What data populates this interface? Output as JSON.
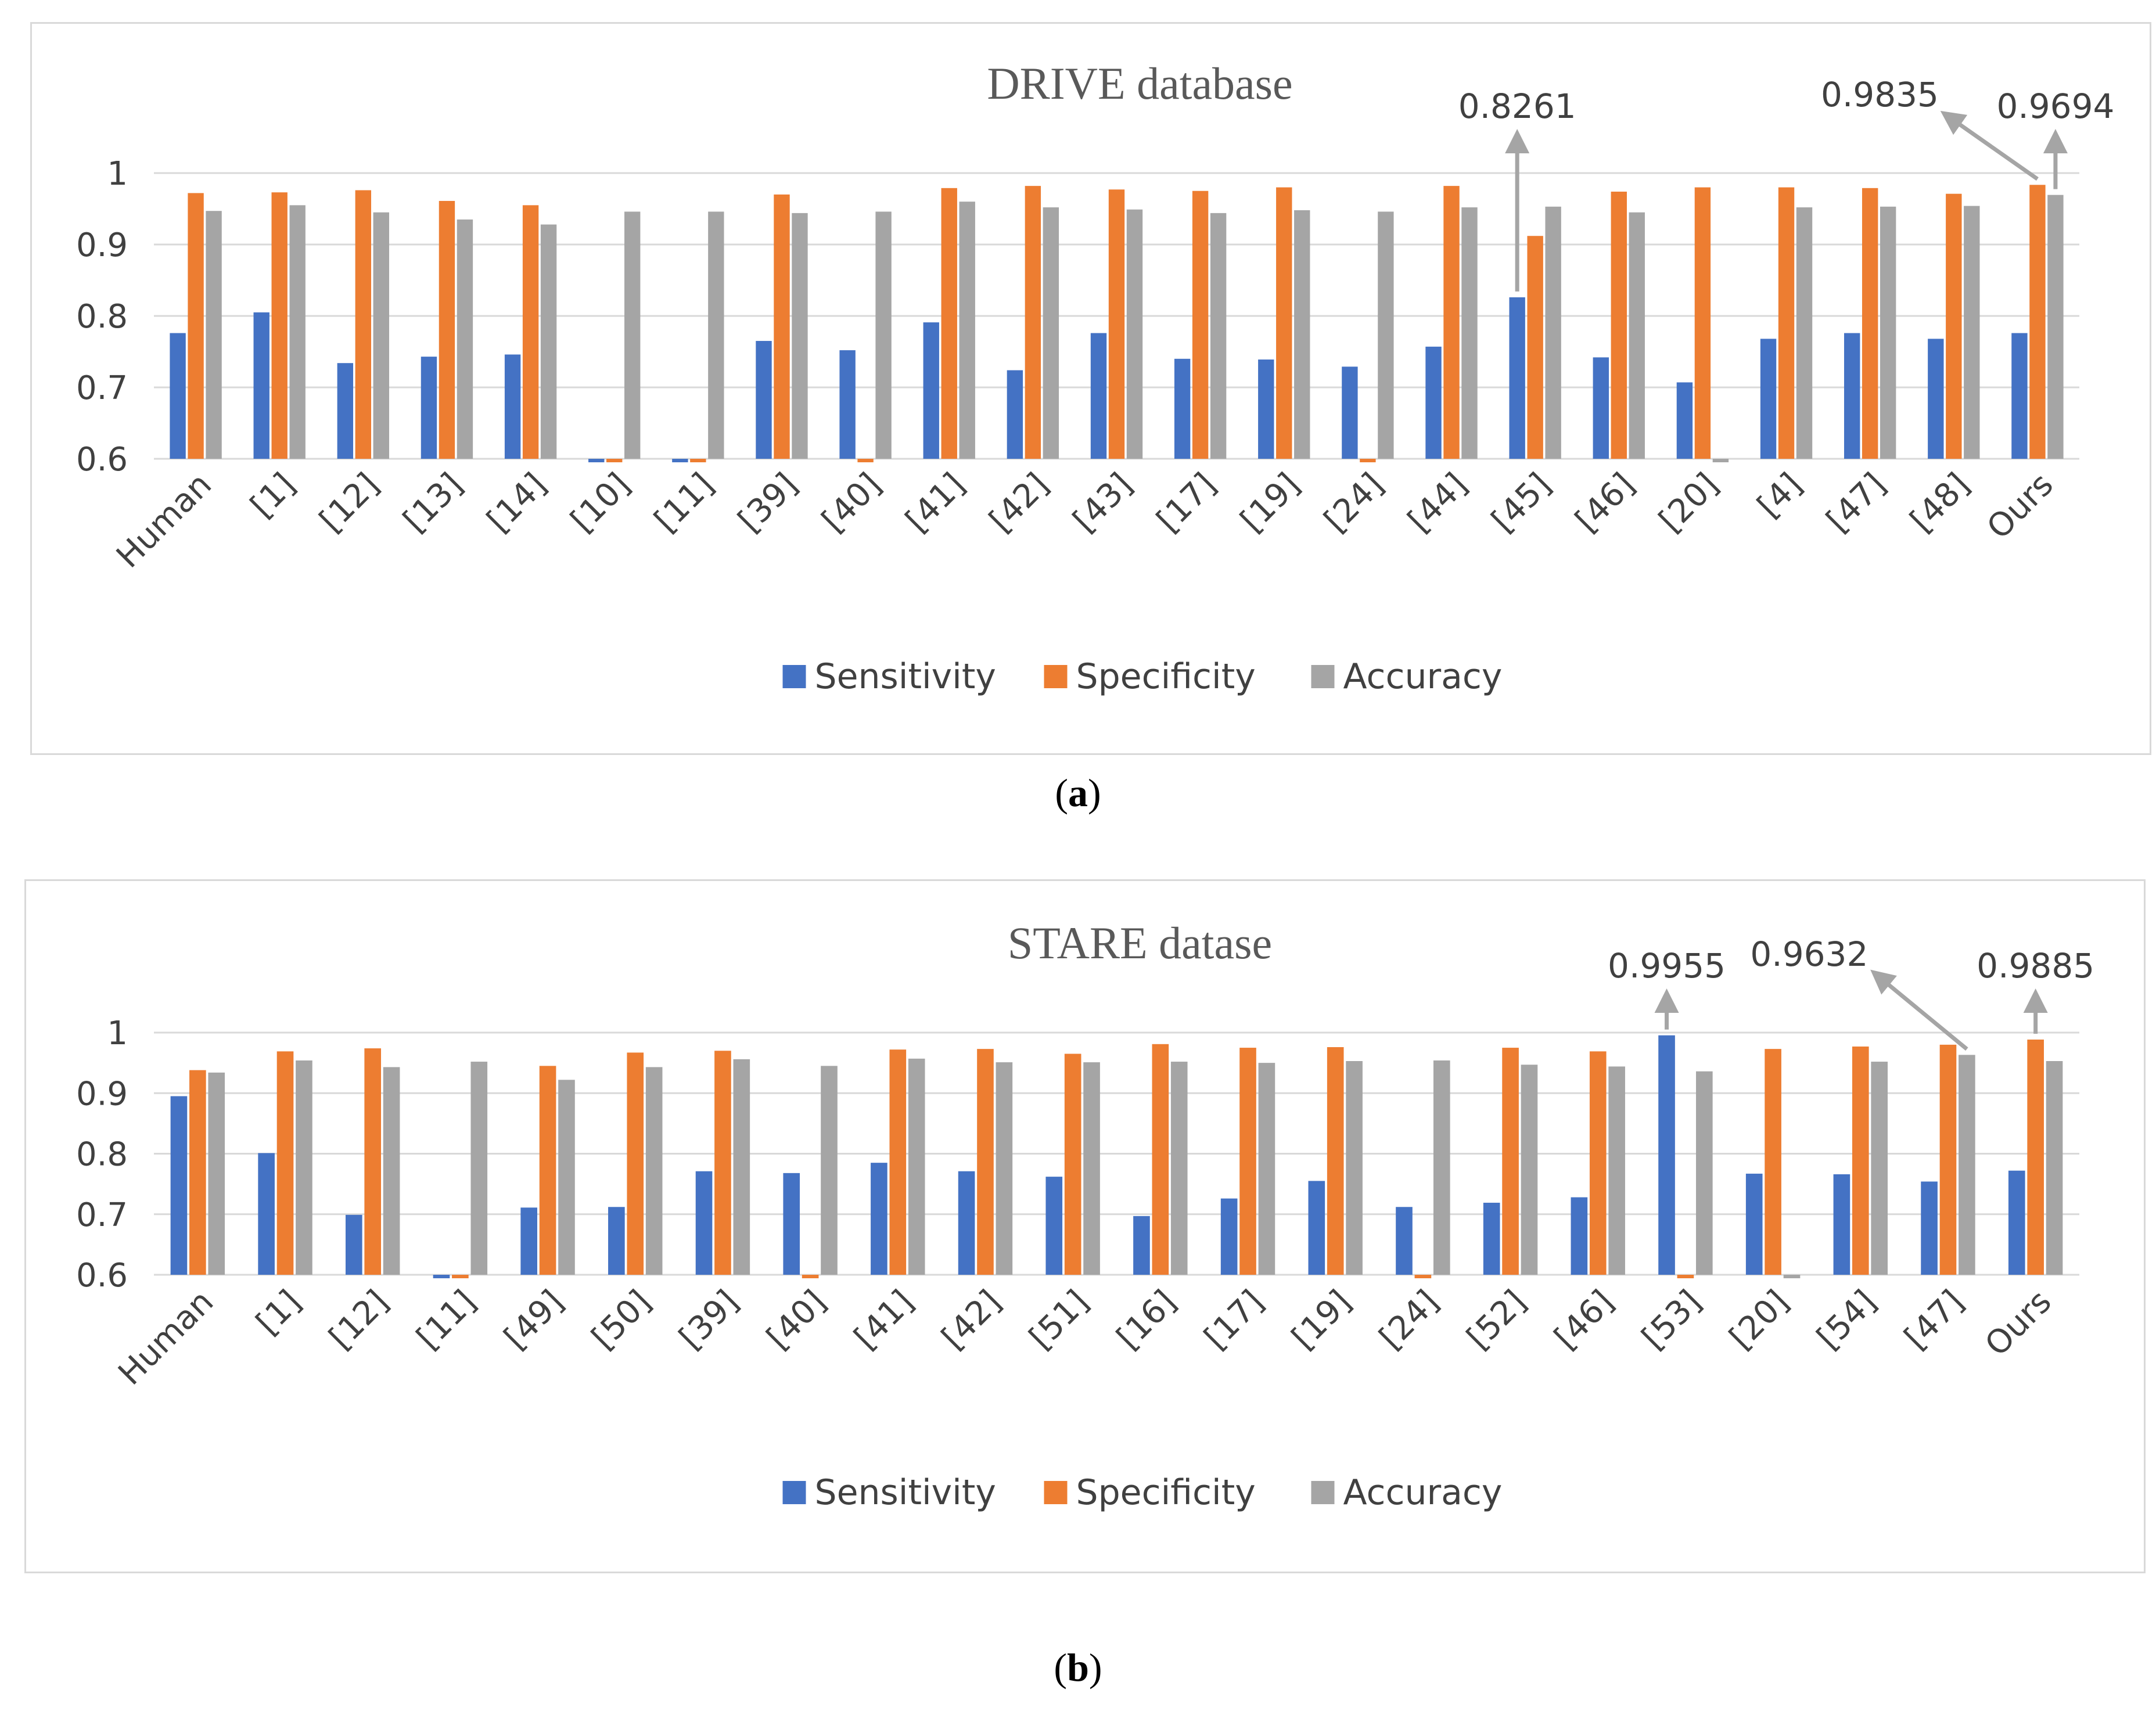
{
  "colors": {
    "sensitivity": "#4472C4",
    "specificity": "#ED7D31",
    "accuracy": "#A5A5A5",
    "grid": "#D9D9D9",
    "arrow": "#A5A5A5"
  },
  "captions": {
    "a": "a",
    "b": "b"
  },
  "chart_data": [
    {
      "type": "bar",
      "title": "DRIVE database",
      "ylim": [
        0.6,
        1.0
      ],
      "yticks": [
        "0.6",
        "0.7",
        "0.8",
        "0.9",
        "1"
      ],
      "categories": [
        "Human",
        "[1]",
        "[12]",
        "[13]",
        "[14]",
        "[10]",
        "[11]",
        "[39]",
        "[40]",
        "[41]",
        "[42]",
        "[43]",
        "[17]",
        "[19]",
        "[24]",
        "[44]",
        "[45]",
        "[46]",
        "[20]",
        "[4]",
        "[47]",
        "[48]",
        "Ours"
      ],
      "series": [
        {
          "name": "Sensitivity",
          "values": [
            0.776,
            0.805,
            0.734,
            0.743,
            0.746,
            0.595,
            0.595,
            0.765,
            0.752,
            0.791,
            0.724,
            0.776,
            0.74,
            0.739,
            0.729,
            0.757,
            0.8261,
            0.742,
            0.707,
            0.768,
            0.776,
            0.768,
            0.776
          ]
        },
        {
          "name": "Specificity",
          "values": [
            0.972,
            0.973,
            0.976,
            0.961,
            0.955,
            0.595,
            0.595,
            0.97,
            0.595,
            0.979,
            0.982,
            0.977,
            0.975,
            0.98,
            0.595,
            0.982,
            0.912,
            0.974,
            0.98,
            0.98,
            0.979,
            0.971,
            0.9835
          ]
        },
        {
          "name": "Accuracy",
          "values": [
            0.947,
            0.955,
            0.945,
            0.935,
            0.928,
            0.946,
            0.946,
            0.944,
            0.946,
            0.96,
            0.952,
            0.949,
            0.944,
            0.948,
            0.946,
            0.952,
            0.953,
            0.945,
            0.595,
            0.952,
            0.953,
            0.954,
            0.9694
          ]
        }
      ],
      "annotations": [
        {
          "label": "0.8261",
          "category": "[45]",
          "series": "Sensitivity",
          "direction": "up"
        },
        {
          "label": "0.9835",
          "category": "Ours",
          "series": "Specificity",
          "direction": "up-left"
        },
        {
          "label": "0.9694",
          "category": "Ours",
          "series": "Accuracy",
          "direction": "up"
        }
      ],
      "legend": "bottom"
    },
    {
      "type": "bar",
      "title": "STARE datase",
      "ylim": [
        0.6,
        1.0
      ],
      "yticks": [
        "0.6",
        "0.7",
        "0.8",
        "0.9",
        "1"
      ],
      "categories": [
        "Human",
        "[1]",
        "[12]",
        "[11]",
        "[49]",
        "[50]",
        "[39]",
        "[40]",
        "[41]",
        "[42]",
        "[51]",
        "[16]",
        "[17]",
        "[19]",
        "[24]",
        "[52]",
        "[46]",
        "[53]",
        "[20]",
        "[54]",
        "[47]",
        "Ours"
      ],
      "series": [
        {
          "name": "Sensitivity",
          "values": [
            0.895,
            0.801,
            0.699,
            0.595,
            0.711,
            0.712,
            0.771,
            0.768,
            0.785,
            0.771,
            0.762,
            0.697,
            0.726,
            0.755,
            0.712,
            0.719,
            0.728,
            0.9955,
            0.767,
            0.766,
            0.754,
            0.772
          ]
        },
        {
          "name": "Specificity",
          "values": [
            0.938,
            0.969,
            0.974,
            0.595,
            0.945,
            0.967,
            0.97,
            0.595,
            0.972,
            0.973,
            0.965,
            0.981,
            0.975,
            0.976,
            0.595,
            0.975,
            0.969,
            0.595,
            0.973,
            0.977,
            0.98,
            0.9885
          ]
        },
        {
          "name": "Accuracy",
          "values": [
            0.934,
            0.954,
            0.943,
            0.952,
            0.922,
            0.943,
            0.956,
            0.945,
            0.957,
            0.951,
            0.951,
            0.952,
            0.95,
            0.953,
            0.954,
            0.947,
            0.944,
            0.936,
            0.595,
            0.952,
            0.9632,
            0.953
          ]
        }
      ],
      "annotations": [
        {
          "label": "0.9955",
          "category": "[53]",
          "series": "Sensitivity",
          "direction": "up"
        },
        {
          "label": "0.9632",
          "category": "[47]",
          "series": "Accuracy",
          "direction": "up-left"
        },
        {
          "label": "0.9885",
          "category": "Ours",
          "series": "Specificity",
          "direction": "up"
        }
      ],
      "legend": "bottom"
    }
  ]
}
